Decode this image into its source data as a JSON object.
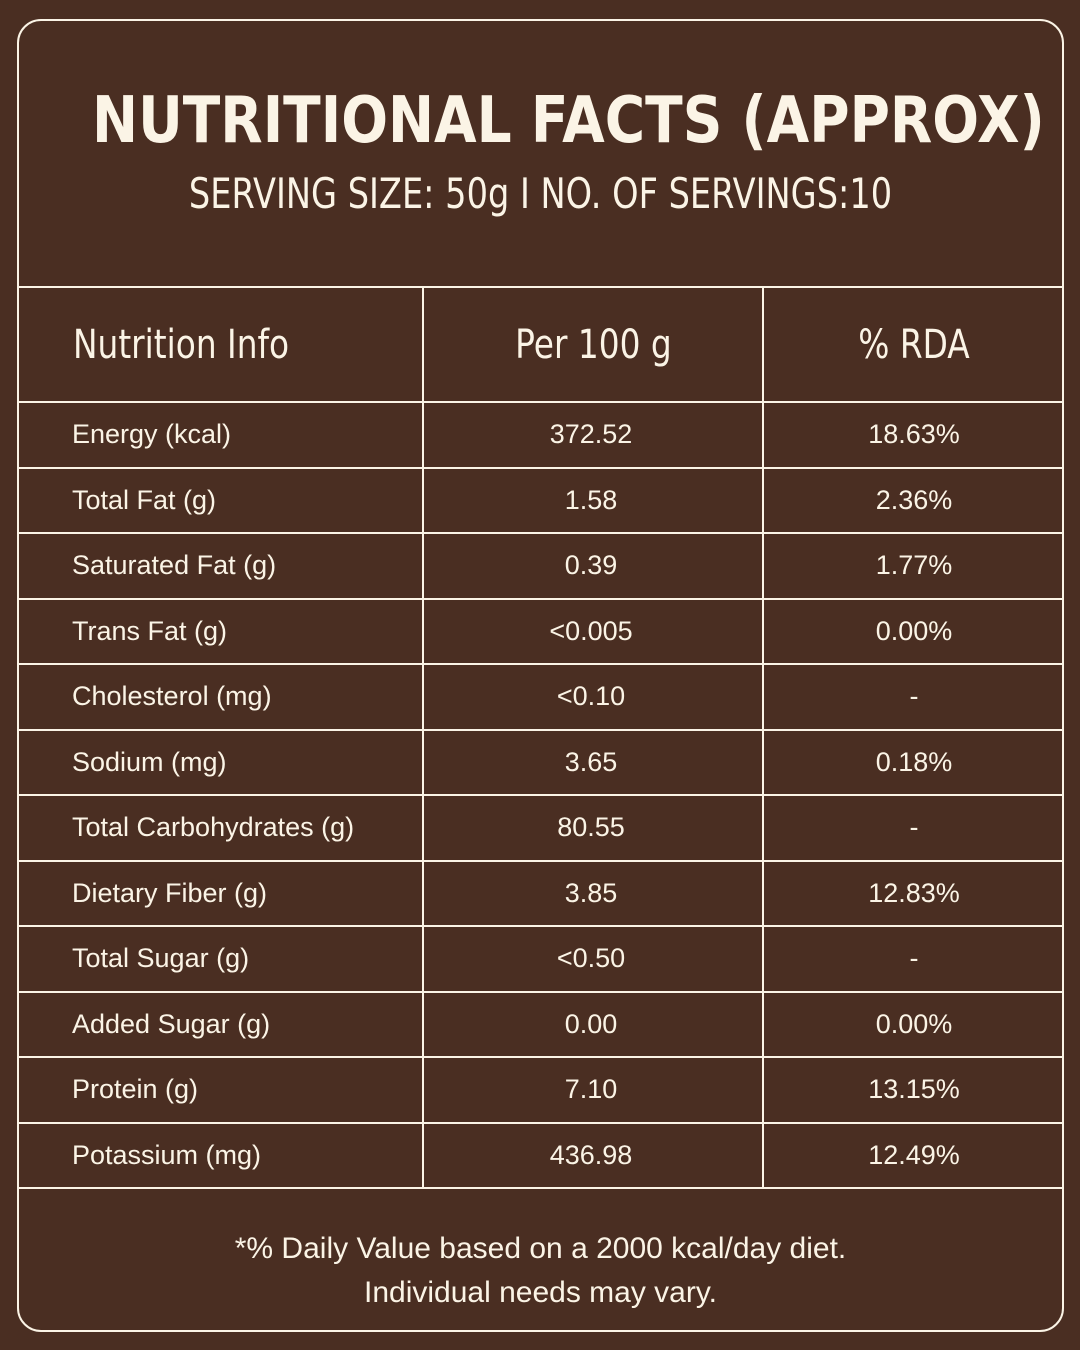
{
  "title": "NUTRITIONAL FACTS (APPROX)",
  "subtitle": "SERVING SIZE: 50g I NO. OF SERVINGS:10",
  "table": {
    "headers": [
      "Nutrition Info",
      "Per 100 g",
      "% RDA"
    ],
    "rows": [
      {
        "name": "Energy (kcal)",
        "per100g": "372.52",
        "rda": "18.63%"
      },
      {
        "name": "Total Fat (g)",
        "per100g": "1.58",
        "rda": "2.36%"
      },
      {
        "name": "Saturated Fat (g)",
        "per100g": "0.39",
        "rda": "1.77%"
      },
      {
        "name": "Trans Fat (g)",
        "per100g": "<0.005",
        "rda": "0.00%"
      },
      {
        "name": "Cholesterol (mg)",
        "per100g": "<0.10",
        "rda": "-"
      },
      {
        "name": "Sodium (mg)",
        "per100g": "3.65",
        "rda": "0.18%"
      },
      {
        "name": "Total Carbohydrates (g)",
        "per100g": "80.55",
        "rda": "-"
      },
      {
        "name": "Dietary Fiber (g)",
        "per100g": "3.85",
        "rda": "12.83%"
      },
      {
        "name": "Total Sugar (g)",
        "per100g": "<0.50",
        "rda": "-"
      },
      {
        "name": "Added Sugar (g)",
        "per100g": "0.00",
        "rda": "0.00%"
      },
      {
        "name": "Protein (g)",
        "per100g": "7.10",
        "rda": "13.15%"
      },
      {
        "name": "Potassium (mg)",
        "per100g": "436.98",
        "rda": "12.49%"
      }
    ]
  },
  "footnote": {
    "line1": "*% Daily Value based on a 2000 kcal/day diet.",
    "line2": "Individual needs may vary."
  },
  "colors": {
    "background": "#4a2e22",
    "text": "#fbf4e6"
  }
}
